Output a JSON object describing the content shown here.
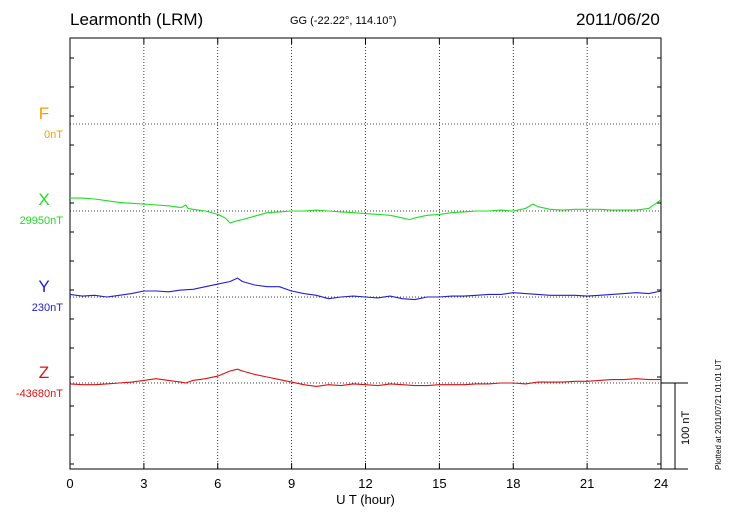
{
  "header": {
    "station": "Learmonth (LRM)",
    "coords": "GG (-22.22°, 114.10°)",
    "date": "2011/06/20"
  },
  "plotted": "Plotted at 2011/07/21 01:01  UT",
  "scale_bar": "100 nT",
  "chart_data": {
    "type": "line",
    "xlabel": "U T (hour)",
    "xlim": [
      0,
      24
    ],
    "xticks": [
      0,
      3,
      6,
      9,
      12,
      15,
      18,
      21,
      24
    ],
    "tick_labels": [
      "0",
      "3",
      "6",
      "9",
      "12",
      "15",
      "18",
      "21",
      "24"
    ],
    "unit": "nT",
    "grid": true,
    "series": [
      {
        "name": "F",
        "baseline_label": "0nT",
        "color": "#f5a000",
        "points": []
      },
      {
        "name": "X",
        "baseline_label": "29950nT",
        "color": "#22dd22",
        "points": [
          [
            0,
            15
          ],
          [
            0.5,
            15
          ],
          [
            1,
            14
          ],
          [
            1.5,
            12
          ],
          [
            2,
            10
          ],
          [
            2.5,
            9
          ],
          [
            3,
            8
          ],
          [
            3.5,
            7
          ],
          [
            4,
            6
          ],
          [
            4.5,
            4
          ],
          [
            4.7,
            7
          ],
          [
            4.8,
            3
          ],
          [
            5,
            2
          ],
          [
            5.5,
            0
          ],
          [
            6,
            -4
          ],
          [
            6.3,
            -8
          ],
          [
            6.5,
            -14
          ],
          [
            6.7,
            -12
          ],
          [
            7,
            -10
          ],
          [
            7.5,
            -6
          ],
          [
            8,
            -2
          ],
          [
            8.5,
            -1
          ],
          [
            9,
            0
          ],
          [
            9.5,
            0
          ],
          [
            10,
            1
          ],
          [
            10.5,
            0
          ],
          [
            11,
            -1
          ],
          [
            11.5,
            -2
          ],
          [
            12,
            -3
          ],
          [
            12.5,
            -4
          ],
          [
            13,
            -5
          ],
          [
            13.5,
            -8
          ],
          [
            13.8,
            -10
          ],
          [
            14,
            -8
          ],
          [
            14.5,
            -5
          ],
          [
            15,
            -4
          ],
          [
            15.5,
            -2
          ],
          [
            16,
            -1
          ],
          [
            16.5,
            0
          ],
          [
            17,
            0
          ],
          [
            17.5,
            1
          ],
          [
            18,
            0
          ],
          [
            18.5,
            3
          ],
          [
            18.8,
            8
          ],
          [
            19,
            5
          ],
          [
            19.5,
            2
          ],
          [
            20,
            1
          ],
          [
            20.5,
            2
          ],
          [
            21,
            2
          ],
          [
            21.5,
            2
          ],
          [
            22,
            1
          ],
          [
            22.5,
            1
          ],
          [
            23,
            1
          ],
          [
            23.5,
            3
          ],
          [
            24,
            13
          ]
        ]
      },
      {
        "name": "Y",
        "baseline_label": "230nT",
        "color": "#2020d0",
        "points": [
          [
            0,
            3
          ],
          [
            0.5,
            1
          ],
          [
            1,
            2
          ],
          [
            1.5,
            0
          ],
          [
            2,
            2
          ],
          [
            2.5,
            4
          ],
          [
            3,
            7
          ],
          [
            3.5,
            7
          ],
          [
            4,
            6
          ],
          [
            4.5,
            8
          ],
          [
            5,
            9
          ],
          [
            5.5,
            12
          ],
          [
            6,
            15
          ],
          [
            6.5,
            18
          ],
          [
            6.8,
            22
          ],
          [
            7,
            18
          ],
          [
            7.5,
            14
          ],
          [
            8,
            12
          ],
          [
            8.5,
            12
          ],
          [
            9,
            7
          ],
          [
            9.5,
            4
          ],
          [
            10,
            2
          ],
          [
            10.5,
            -2
          ],
          [
            11,
            0
          ],
          [
            11.5,
            1
          ],
          [
            12,
            0
          ],
          [
            12.5,
            -1
          ],
          [
            13,
            1
          ],
          [
            13.5,
            -2
          ],
          [
            14,
            -3
          ],
          [
            14.5,
            0
          ],
          [
            15,
            0
          ],
          [
            15.5,
            1
          ],
          [
            16,
            1
          ],
          [
            16.5,
            2
          ],
          [
            17,
            3
          ],
          [
            17.5,
            3
          ],
          [
            18,
            5
          ],
          [
            18.5,
            4
          ],
          [
            19,
            3
          ],
          [
            19.5,
            2
          ],
          [
            20,
            2
          ],
          [
            20.5,
            2
          ],
          [
            21,
            1
          ],
          [
            21.5,
            2
          ],
          [
            22,
            3
          ],
          [
            22.5,
            4
          ],
          [
            23,
            5
          ],
          [
            23.5,
            4
          ],
          [
            24,
            7
          ]
        ]
      },
      {
        "name": "Z",
        "baseline_label": "-43680nT",
        "color": "#dd1111",
        "points": [
          [
            0,
            -1
          ],
          [
            0.5,
            -2
          ],
          [
            1,
            -2
          ],
          [
            1.5,
            -1
          ],
          [
            2,
            0
          ],
          [
            2.5,
            1
          ],
          [
            3,
            3
          ],
          [
            3.5,
            5
          ],
          [
            4,
            3
          ],
          [
            4.5,
            1
          ],
          [
            4.7,
            0
          ],
          [
            5,
            3
          ],
          [
            5.5,
            5
          ],
          [
            6,
            8
          ],
          [
            6.5,
            14
          ],
          [
            6.8,
            16
          ],
          [
            7,
            14
          ],
          [
            7.5,
            10
          ],
          [
            8,
            7
          ],
          [
            8.5,
            4
          ],
          [
            9,
            1
          ],
          [
            9.5,
            -2
          ],
          [
            10,
            -4
          ],
          [
            10.5,
            -2
          ],
          [
            11,
            -3
          ],
          [
            11.5,
            -1
          ],
          [
            12,
            -2
          ],
          [
            12.5,
            -3
          ],
          [
            13,
            -1
          ],
          [
            13.5,
            -2
          ],
          [
            14,
            -3
          ],
          [
            14.5,
            -3
          ],
          [
            15,
            -2
          ],
          [
            15.5,
            -2
          ],
          [
            16,
            -2
          ],
          [
            16.5,
            -1
          ],
          [
            17,
            -1
          ],
          [
            17.5,
            0
          ],
          [
            18,
            0
          ],
          [
            18.5,
            -1
          ],
          [
            19,
            1
          ],
          [
            19.5,
            1
          ],
          [
            20,
            1
          ],
          [
            20.5,
            2
          ],
          [
            21,
            2
          ],
          [
            21.5,
            3
          ],
          [
            22,
            4
          ],
          [
            22.5,
            4
          ],
          [
            23,
            5
          ],
          [
            23.5,
            4
          ],
          [
            24,
            4
          ]
        ]
      }
    ]
  }
}
